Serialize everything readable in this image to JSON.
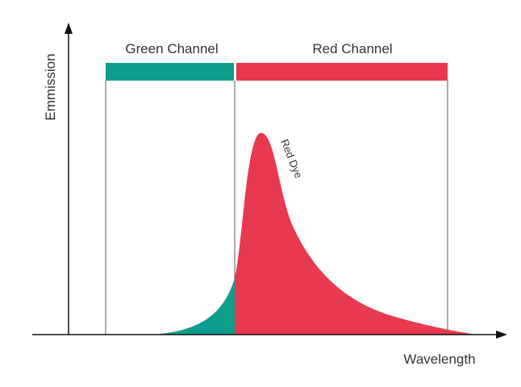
{
  "channels": {
    "green": "Green Channel",
    "red": "Red Channel"
  },
  "axes": {
    "y": "Emmission",
    "x": "Wavelength"
  },
  "curve_label": "Red Dye"
}
